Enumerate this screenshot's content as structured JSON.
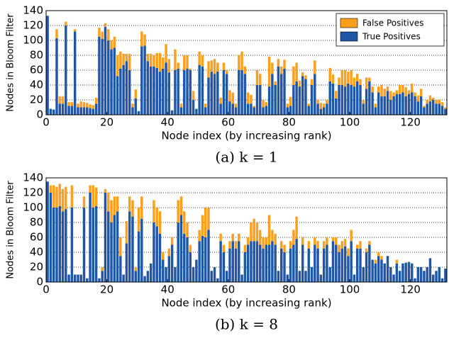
{
  "chart_data": [
    {
      "type": "bar",
      "stacked": true,
      "caption": "(a) k = 1",
      "xlabel": "Node index (by increasing rank)",
      "ylabel": "Nodes in Bloom Filter",
      "xlim": [
        0,
        132
      ],
      "ylim": [
        0,
        140
      ],
      "xticks": [
        0,
        20,
        40,
        60,
        80,
        100,
        120
      ],
      "yticks": [
        0,
        20,
        40,
        60,
        80,
        100,
        120,
        140
      ],
      "grid": true,
      "legend": "upper right",
      "x": [
        0,
        1,
        2,
        3,
        4,
        5,
        6,
        7,
        8,
        9,
        10,
        11,
        12,
        13,
        14,
        15,
        16,
        17,
        18,
        19,
        20,
        21,
        22,
        23,
        24,
        25,
        26,
        27,
        28,
        29,
        30,
        31,
        32,
        33,
        34,
        35,
        36,
        37,
        38,
        39,
        40,
        41,
        42,
        43,
        44,
        45,
        46,
        47,
        48,
        49,
        50,
        51,
        52,
        53,
        54,
        55,
        56,
        57,
        58,
        59,
        60,
        61,
        62,
        63,
        64,
        65,
        66,
        67,
        68,
        69,
        70,
        71,
        72,
        73,
        74,
        75,
        76,
        77,
        78,
        79,
        80,
        81,
        82,
        83,
        84,
        85,
        86,
        87,
        88,
        89,
        90,
        91,
        92,
        93,
        94,
        95,
        96,
        97,
        98,
        99,
        100,
        101,
        102,
        103,
        104,
        105,
        106,
        107,
        108,
        109,
        110,
        111,
        112,
        113,
        114,
        115,
        116,
        117,
        118,
        119,
        120,
        121,
        122,
        123,
        124,
        125,
        126,
        127,
        128,
        129,
        130,
        131
      ],
      "series": [
        {
          "name": "True Positives",
          "color": "#1f56a5",
          "values": [
            133,
            8,
            7,
            103,
            15,
            15,
            120,
            12,
            12,
            112,
            10,
            10,
            10,
            10,
            9,
            8,
            15,
            105,
            102,
            118,
            100,
            88,
            90,
            52,
            62,
            67,
            72,
            60,
            10,
            22,
            5,
            92,
            93,
            72,
            65,
            65,
            63,
            58,
            62,
            70,
            57,
            6,
            60,
            62,
            10,
            60,
            62,
            60,
            20,
            8,
            67,
            65,
            10,
            50,
            58,
            55,
            58,
            15,
            60,
            55,
            18,
            15,
            10,
            60,
            60,
            55,
            15,
            15,
            10,
            40,
            40,
            10,
            12,
            38,
            55,
            40,
            65,
            55,
            62,
            10,
            12,
            40,
            45,
            38,
            52,
            48,
            12,
            40,
            55,
            15,
            8,
            10,
            15,
            45,
            42,
            22,
            40,
            40,
            38,
            42,
            40,
            38,
            45,
            40,
            15,
            35,
            45,
            30,
            10,
            30,
            25,
            25,
            32,
            20,
            25,
            28,
            28,
            30,
            25,
            28,
            30,
            25,
            18,
            25,
            10,
            15,
            18,
            20,
            15,
            15,
            12,
            8
          ]
        },
        {
          "name": "False Positives",
          "color": "#ff9f1c",
          "values": [
            0,
            0,
            0,
            12,
            10,
            10,
            5,
            5,
            5,
            3,
            5,
            8,
            7,
            6,
            5,
            5,
            8,
            12,
            10,
            5,
            15,
            12,
            15,
            28,
            23,
            15,
            10,
            22,
            5,
            12,
            0,
            20,
            15,
            10,
            17,
            15,
            20,
            25,
            15,
            25,
            18,
            0,
            28,
            8,
            5,
            20,
            18,
            2,
            12,
            0,
            18,
            15,
            5,
            22,
            15,
            20,
            12,
            8,
            10,
            5,
            15,
            15,
            5,
            20,
            25,
            10,
            15,
            12,
            2,
            20,
            15,
            10,
            5,
            40,
            15,
            5,
            10,
            10,
            12,
            5,
            12,
            25,
            25,
            8,
            5,
            5,
            3,
            8,
            18,
            5,
            8,
            5,
            5,
            18,
            12,
            10,
            10,
            20,
            22,
            16,
            20,
            12,
            10,
            8,
            5,
            15,
            5,
            8,
            5,
            8,
            15,
            10,
            6,
            12,
            5,
            5,
            12,
            10,
            12,
            5,
            12,
            5,
            8,
            10,
            2,
            5,
            8,
            3,
            5,
            5,
            5,
            2
          ]
        }
      ]
    },
    {
      "type": "bar",
      "stacked": true,
      "caption": "(b) k = 8",
      "xlabel": "Node index (by increasing rank)",
      "ylabel": "Nodes in Bloom Filter",
      "xlim": [
        0,
        132
      ],
      "ylim": [
        0,
        140
      ],
      "xticks": [
        0,
        20,
        40,
        60,
        80,
        100,
        120
      ],
      "yticks": [
        0,
        20,
        40,
        60,
        80,
        100,
        120,
        140
      ],
      "grid": true,
      "x": [
        0,
        1,
        2,
        3,
        4,
        5,
        6,
        7,
        8,
        9,
        10,
        11,
        12,
        13,
        14,
        15,
        16,
        17,
        18,
        19,
        20,
        21,
        22,
        23,
        24,
        25,
        26,
        27,
        28,
        29,
        30,
        31,
        32,
        33,
        34,
        35,
        36,
        37,
        38,
        39,
        40,
        41,
        42,
        43,
        44,
        45,
        46,
        47,
        48,
        49,
        50,
        51,
        52,
        53,
        54,
        55,
        56,
        57,
        58,
        59,
        60,
        61,
        62,
        63,
        64,
        65,
        66,
        67,
        68,
        69,
        70,
        71,
        72,
        73,
        74,
        75,
        76,
        77,
        78,
        79,
        80,
        81,
        82,
        83,
        84,
        85,
        86,
        87,
        88,
        89,
        90,
        91,
        92,
        93,
        94,
        95,
        96,
        97,
        98,
        99,
        100,
        101,
        102,
        103,
        104,
        105,
        106,
        107,
        108,
        109,
        110,
        111,
        112,
        113,
        114,
        115,
        116,
        117,
        118,
        119,
        120,
        121,
        122,
        123,
        124,
        125,
        126,
        127,
        128,
        129,
        130,
        131
      ],
      "series": [
        {
          "name": "True Positives",
          "color": "#1f56a5",
          "values": [
            135,
            120,
            100,
            100,
            102,
            95,
            98,
            10,
            100,
            10,
            10,
            10,
            100,
            5,
            120,
            100,
            102,
            5,
            15,
            120,
            95,
            80,
            90,
            95,
            35,
            10,
            52,
            95,
            88,
            15,
            68,
            85,
            8,
            15,
            25,
            80,
            75,
            65,
            30,
            20,
            35,
            50,
            20,
            80,
            90,
            65,
            60,
            40,
            20,
            30,
            55,
            62,
            60,
            70,
            15,
            20,
            5,
            55,
            40,
            15,
            45,
            55,
            45,
            55,
            10,
            40,
            50,
            55,
            55,
            55,
            50,
            45,
            50,
            50,
            55,
            50,
            15,
            45,
            40,
            10,
            45,
            50,
            58,
            15,
            50,
            15,
            45,
            20,
            50,
            45,
            10,
            45,
            50,
            20,
            55,
            50,
            40,
            45,
            48,
            35,
            55,
            10,
            45,
            45,
            20,
            40,
            50,
            30,
            25,
            35,
            30,
            25,
            35,
            20,
            10,
            25,
            15,
            25,
            26,
            27,
            25,
            5,
            20,
            20,
            15,
            20,
            32,
            10,
            15,
            20,
            5,
            18
          ]
        },
        {
          "name": "False Positives",
          "color": "#ff9f1c",
          "values": [
            0,
            10,
            30,
            28,
            30,
            30,
            30,
            0,
            30,
            0,
            0,
            0,
            15,
            0,
            10,
            30,
            25,
            0,
            5,
            5,
            25,
            30,
            25,
            20,
            25,
            0,
            30,
            20,
            22,
            5,
            32,
            30,
            0,
            0,
            0,
            30,
            25,
            30,
            10,
            0,
            10,
            10,
            0,
            30,
            25,
            30,
            20,
            10,
            0,
            0,
            15,
            28,
            40,
            30,
            0,
            0,
            0,
            10,
            10,
            0,
            10,
            10,
            10,
            10,
            0,
            10,
            10,
            25,
            30,
            25,
            20,
            15,
            10,
            40,
            15,
            15,
            0,
            10,
            10,
            0,
            10,
            20,
            30,
            0,
            10,
            0,
            10,
            0,
            10,
            10,
            0,
            10,
            10,
            0,
            5,
            10,
            10,
            10,
            10,
            10,
            15,
            0,
            5,
            10,
            0,
            5,
            5,
            0,
            5,
            5,
            5,
            0,
            0,
            0,
            0,
            5,
            0,
            0,
            0,
            0,
            0,
            0,
            0,
            0,
            0,
            0,
            0,
            0,
            0,
            0,
            0,
            0
          ]
        }
      ]
    }
  ]
}
